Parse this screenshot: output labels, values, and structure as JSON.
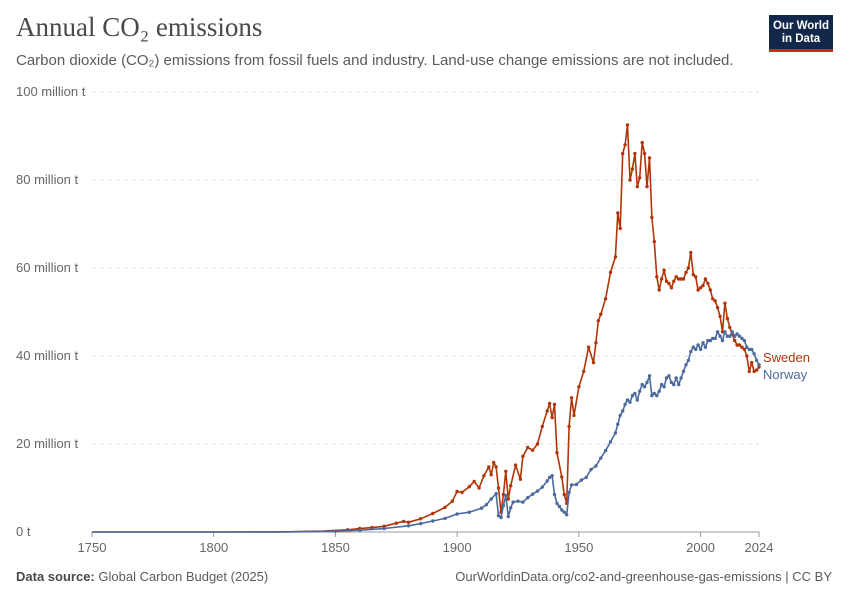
{
  "header": {
    "title": "Annual CO₂ emissions",
    "subtitle": "Carbon dioxide (CO₂) emissions from fossil fuels and industry. Land-use change emissions are not included.",
    "logo_line1": "Our World",
    "logo_line2": "in Data"
  },
  "footer": {
    "source_label": "Data source:",
    "source_text": "Global Carbon Budget (2025)",
    "link_text": "OurWorldinData.org/co2-and-greenhouse-gas-emissions | CC BY"
  },
  "colors": {
    "sweden": "#b13507",
    "norway": "#4c6a9c",
    "grid": "#dddddd",
    "axis_text": "#666666",
    "logo_bg": "#12284a",
    "logo_accent": "#c62b1f"
  },
  "chart_data": {
    "type": "line",
    "title": "Annual CO₂ emissions",
    "xlabel": "",
    "ylabel": "",
    "xlim": [
      1750,
      2024
    ],
    "ylim": [
      0,
      100
    ],
    "y_unit": "million t",
    "grid": true,
    "legend": "right, at line ends",
    "x_ticks": [
      "1750",
      "1800",
      "1850",
      "1900",
      "1950",
      "2000",
      "2024"
    ],
    "y_ticks": [
      {
        "value": 0,
        "label": "0 t"
      },
      {
        "value": 20,
        "label": "20 million t"
      },
      {
        "value": 40,
        "label": "40 million t"
      },
      {
        "value": 60,
        "label": "60 million t"
      },
      {
        "value": 80,
        "label": "80 million t"
      },
      {
        "value": 100,
        "label": "100 million t"
      }
    ],
    "series": [
      {
        "name": "Sweden",
        "color": "#b13507",
        "points": [
          [
            1750,
            0
          ],
          [
            1800,
            0
          ],
          [
            1830,
            0.05
          ],
          [
            1845,
            0.2
          ],
          [
            1855,
            0.5
          ],
          [
            1860,
            0.8
          ],
          [
            1865,
            1.0
          ],
          [
            1870,
            1.3
          ],
          [
            1875,
            2.0
          ],
          [
            1878,
            2.4
          ],
          [
            1880,
            2.2
          ],
          [
            1885,
            3.0
          ],
          [
            1890,
            4.2
          ],
          [
            1895,
            5.6
          ],
          [
            1898,
            7.0
          ],
          [
            1900,
            9.2
          ],
          [
            1902,
            9.0
          ],
          [
            1905,
            10.3
          ],
          [
            1907,
            11.5
          ],
          [
            1909,
            10.0
          ],
          [
            1911,
            12.8
          ],
          [
            1913,
            14.8
          ],
          [
            1914,
            13.0
          ],
          [
            1915,
            15.8
          ],
          [
            1916,
            14.8
          ],
          [
            1917,
            10.0
          ],
          [
            1918,
            4.5
          ],
          [
            1919,
            8.5
          ],
          [
            1920,
            13.8
          ],
          [
            1921,
            7.5
          ],
          [
            1922,
            10.5
          ],
          [
            1924,
            15.2
          ],
          [
            1926,
            12.0
          ],
          [
            1927,
            17.2
          ],
          [
            1929,
            19.2
          ],
          [
            1931,
            18.6
          ],
          [
            1933,
            20.0
          ],
          [
            1935,
            24.0
          ],
          [
            1937,
            27.5
          ],
          [
            1938,
            29.2
          ],
          [
            1939,
            26.0
          ],
          [
            1940,
            29.0
          ],
          [
            1941,
            18.0
          ],
          [
            1943,
            12.5
          ],
          [
            1944,
            8.5
          ],
          [
            1945,
            6.5
          ],
          [
            1946,
            24.0
          ],
          [
            1947,
            30.5
          ],
          [
            1948,
            26.5
          ],
          [
            1950,
            33.0
          ],
          [
            1952,
            36.5
          ],
          [
            1954,
            42.0
          ],
          [
            1956,
            38.5
          ],
          [
            1957,
            43.0
          ],
          [
            1958,
            48.0
          ],
          [
            1959,
            49.5
          ],
          [
            1961,
            53.0
          ],
          [
            1963,
            59.0
          ],
          [
            1965,
            62.5
          ],
          [
            1966,
            72.5
          ],
          [
            1967,
            69.0
          ],
          [
            1968,
            86.0
          ],
          [
            1969,
            88.0
          ],
          [
            1970,
            92.5
          ],
          [
            1971,
            80.0
          ],
          [
            1972,
            82.5
          ],
          [
            1973,
            86.0
          ],
          [
            1974,
            78.5
          ],
          [
            1975,
            80.5
          ],
          [
            1976,
            88.5
          ],
          [
            1977,
            86.0
          ],
          [
            1978,
            78.5
          ],
          [
            1979,
            85.0
          ],
          [
            1980,
            71.5
          ],
          [
            1981,
            66.0
          ],
          [
            1982,
            58.0
          ],
          [
            1983,
            55.0
          ],
          [
            1984,
            57.5
          ],
          [
            1985,
            59.5
          ],
          [
            1986,
            57.0
          ],
          [
            1987,
            56.5
          ],
          [
            1988,
            55.5
          ],
          [
            1989,
            57.0
          ],
          [
            1990,
            58.0
          ],
          [
            1991,
            57.5
          ],
          [
            1992,
            57.5
          ],
          [
            1993,
            57.5
          ],
          [
            1994,
            59.0
          ],
          [
            1995,
            60.0
          ],
          [
            1996,
            63.5
          ],
          [
            1997,
            58.5
          ],
          [
            1998,
            58.0
          ],
          [
            1999,
            55.0
          ],
          [
            2000,
            55.5
          ],
          [
            2001,
            56.0
          ],
          [
            2002,
            57.5
          ],
          [
            2003,
            56.5
          ],
          [
            2004,
            55.0
          ],
          [
            2005,
            53.0
          ],
          [
            2006,
            52.5
          ],
          [
            2007,
            51.0
          ],
          [
            2008,
            49.0
          ],
          [
            2009,
            45.5
          ],
          [
            2010,
            52.0
          ],
          [
            2011,
            48.5
          ],
          [
            2012,
            46.5
          ],
          [
            2013,
            45.0
          ],
          [
            2014,
            43.5
          ],
          [
            2015,
            42.5
          ],
          [
            2016,
            42.5
          ],
          [
            2017,
            42.0
          ],
          [
            2018,
            41.5
          ],
          [
            2019,
            40.0
          ],
          [
            2020,
            36.5
          ],
          [
            2021,
            38.5
          ],
          [
            2022,
            36.5
          ],
          [
            2023,
            36.8
          ],
          [
            2024,
            37.5
          ]
        ]
      },
      {
        "name": "Norway",
        "color": "#4c6a9c",
        "points": [
          [
            1750,
            0
          ],
          [
            1800,
            0
          ],
          [
            1830,
            0.03
          ],
          [
            1850,
            0.15
          ],
          [
            1860,
            0.4
          ],
          [
            1870,
            0.8
          ],
          [
            1880,
            1.4
          ],
          [
            1885,
            1.9
          ],
          [
            1890,
            2.5
          ],
          [
            1895,
            3.1
          ],
          [
            1900,
            4.1
          ],
          [
            1905,
            4.5
          ],
          [
            1910,
            5.4
          ],
          [
            1912,
            6.2
          ],
          [
            1914,
            7.5
          ],
          [
            1916,
            8.7
          ],
          [
            1917,
            3.7
          ],
          [
            1918,
            3.3
          ],
          [
            1919,
            6.0
          ],
          [
            1920,
            8.3
          ],
          [
            1921,
            3.5
          ],
          [
            1922,
            5.5
          ],
          [
            1923,
            6.8
          ],
          [
            1925,
            7.0
          ],
          [
            1927,
            6.8
          ],
          [
            1929,
            7.8
          ],
          [
            1931,
            8.6
          ],
          [
            1933,
            9.3
          ],
          [
            1935,
            10.2
          ],
          [
            1937,
            11.6
          ],
          [
            1938,
            12.4
          ],
          [
            1939,
            12.8
          ],
          [
            1940,
            8.5
          ],
          [
            1941,
            6.5
          ],
          [
            1942,
            5.8
          ],
          [
            1943,
            5.0
          ],
          [
            1944,
            4.5
          ],
          [
            1945,
            3.9
          ],
          [
            1946,
            9.0
          ],
          [
            1947,
            10.7
          ],
          [
            1949,
            10.8
          ],
          [
            1951,
            11.8
          ],
          [
            1953,
            12.4
          ],
          [
            1955,
            14.2
          ],
          [
            1957,
            15.0
          ],
          [
            1959,
            16.8
          ],
          [
            1961,
            18.5
          ],
          [
            1963,
            20.5
          ],
          [
            1965,
            22.5
          ],
          [
            1966,
            24.5
          ],
          [
            1967,
            26.5
          ],
          [
            1968,
            27.5
          ],
          [
            1969,
            29.0
          ],
          [
            1970,
            30.0
          ],
          [
            1971,
            29.5
          ],
          [
            1972,
            31.0
          ],
          [
            1973,
            31.5
          ],
          [
            1974,
            30.0
          ],
          [
            1975,
            32.0
          ],
          [
            1976,
            33.5
          ],
          [
            1977,
            33.0
          ],
          [
            1978,
            34.0
          ],
          [
            1979,
            35.5
          ],
          [
            1980,
            31.0
          ],
          [
            1981,
            31.5
          ],
          [
            1982,
            31.0
          ],
          [
            1983,
            32.0
          ],
          [
            1984,
            33.5
          ],
          [
            1985,
            33.0
          ],
          [
            1986,
            35.0
          ],
          [
            1987,
            35.5
          ],
          [
            1988,
            34.0
          ],
          [
            1989,
            33.5
          ],
          [
            1990,
            35.0
          ],
          [
            1991,
            33.5
          ],
          [
            1992,
            35.0
          ],
          [
            1993,
            36.5
          ],
          [
            1994,
            38.0
          ],
          [
            1995,
            39.0
          ],
          [
            1996,
            41.0
          ],
          [
            1997,
            42.0
          ],
          [
            1998,
            41.5
          ],
          [
            1999,
            42.5
          ],
          [
            2000,
            41.5
          ],
          [
            2001,
            43.0
          ],
          [
            2002,
            42.0
          ],
          [
            2003,
            43.5
          ],
          [
            2004,
            43.5
          ],
          [
            2005,
            44.0
          ],
          [
            2006,
            44.0
          ],
          [
            2007,
            45.5
          ],
          [
            2008,
            44.5
          ],
          [
            2009,
            43.5
          ],
          [
            2010,
            45.5
          ],
          [
            2011,
            44.5
          ],
          [
            2012,
            44.5
          ],
          [
            2013,
            45.5
          ],
          [
            2014,
            44.5
          ],
          [
            2015,
            45.0
          ],
          [
            2016,
            44.5
          ],
          [
            2017,
            44.0
          ],
          [
            2018,
            43.5
          ],
          [
            2019,
            42.0
          ],
          [
            2020,
            41.5
          ],
          [
            2021,
            41.5
          ],
          [
            2022,
            40.5
          ],
          [
            2023,
            39.0
          ],
          [
            2024,
            38.0
          ]
        ]
      }
    ]
  }
}
